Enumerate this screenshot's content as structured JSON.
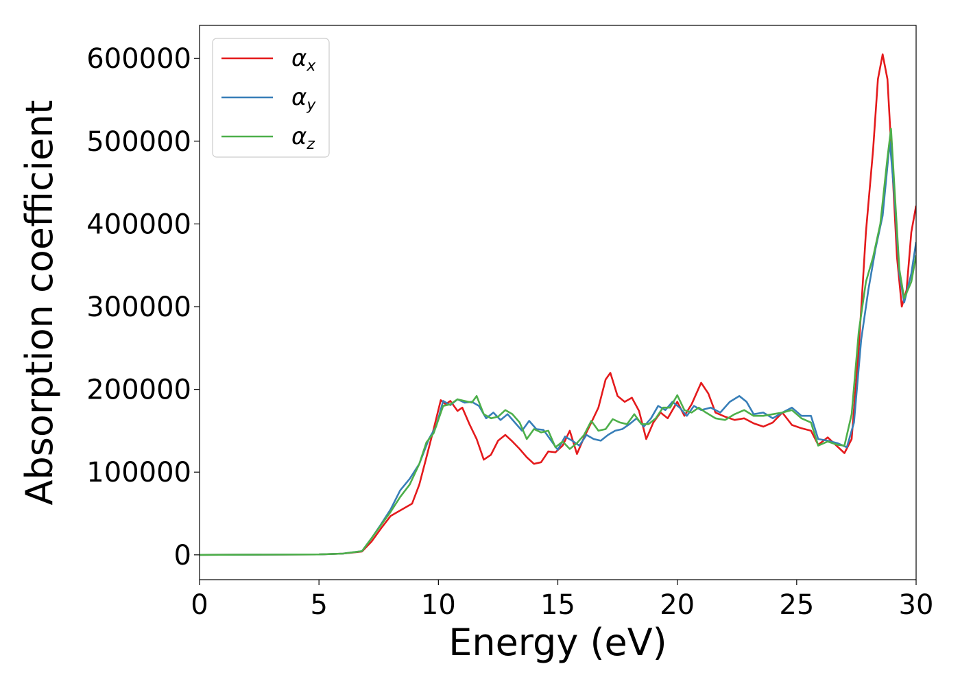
{
  "chart_data": {
    "type": "line",
    "xlabel": "Energy (eV)",
    "ylabel": "Absorption coefficient",
    "xlim": [
      0,
      30
    ],
    "ylim": [
      -30000,
      640000
    ],
    "x_ticks": [
      0,
      5,
      10,
      15,
      20,
      25,
      30
    ],
    "y_ticks": [
      0,
      100000,
      200000,
      300000,
      400000,
      500000,
      600000
    ],
    "grid": false,
    "legend_position": "top-left",
    "series": [
      {
        "name": "α",
        "subscript": "x",
        "color": "#e41a1c",
        "points": [
          [
            0,
            0
          ],
          [
            5,
            500
          ],
          [
            6,
            1500
          ],
          [
            6.8,
            4000
          ],
          [
            7.2,
            16000
          ],
          [
            7.6,
            32000
          ],
          [
            8.0,
            47000
          ],
          [
            8.3,
            52000
          ],
          [
            8.6,
            57000
          ],
          [
            8.9,
            62000
          ],
          [
            9.2,
            85000
          ],
          [
            9.5,
            118000
          ],
          [
            9.8,
            152000
          ],
          [
            10.1,
            187000
          ],
          [
            10.3,
            182000
          ],
          [
            10.5,
            186000
          ],
          [
            10.8,
            174000
          ],
          [
            11.0,
            178000
          ],
          [
            11.3,
            158000
          ],
          [
            11.6,
            140000
          ],
          [
            11.9,
            115000
          ],
          [
            12.2,
            121000
          ],
          [
            12.5,
            138000
          ],
          [
            12.8,
            145000
          ],
          [
            13.1,
            137000
          ],
          [
            13.4,
            128000
          ],
          [
            13.7,
            118000
          ],
          [
            14.0,
            110000
          ],
          [
            14.3,
            112000
          ],
          [
            14.6,
            125000
          ],
          [
            14.9,
            124000
          ],
          [
            15.2,
            132000
          ],
          [
            15.5,
            150000
          ],
          [
            15.8,
            122000
          ],
          [
            16.1,
            142000
          ],
          [
            16.4,
            160000
          ],
          [
            16.7,
            178000
          ],
          [
            17.0,
            212000
          ],
          [
            17.2,
            220000
          ],
          [
            17.5,
            192000
          ],
          [
            17.8,
            185000
          ],
          [
            18.1,
            190000
          ],
          [
            18.4,
            174000
          ],
          [
            18.7,
            140000
          ],
          [
            19.0,
            160000
          ],
          [
            19.3,
            172000
          ],
          [
            19.6,
            165000
          ],
          [
            20.0,
            185000
          ],
          [
            20.3,
            168000
          ],
          [
            20.6,
            182000
          ],
          [
            21.0,
            208000
          ],
          [
            21.3,
            195000
          ],
          [
            21.6,
            172000
          ],
          [
            22.0,
            167000
          ],
          [
            22.4,
            163000
          ],
          [
            22.8,
            165000
          ],
          [
            23.2,
            159000
          ],
          [
            23.6,
            155000
          ],
          [
            24.0,
            160000
          ],
          [
            24.4,
            172000
          ],
          [
            24.8,
            157000
          ],
          [
            25.2,
            153000
          ],
          [
            25.6,
            150000
          ],
          [
            25.9,
            133000
          ],
          [
            26.3,
            142000
          ],
          [
            26.7,
            131000
          ],
          [
            27.0,
            123000
          ],
          [
            27.3,
            140000
          ],
          [
            27.6,
            250000
          ],
          [
            27.9,
            390000
          ],
          [
            28.2,
            490000
          ],
          [
            28.4,
            575000
          ],
          [
            28.6,
            605000
          ],
          [
            28.8,
            575000
          ],
          [
            29.0,
            470000
          ],
          [
            29.2,
            360000
          ],
          [
            29.4,
            300000
          ],
          [
            29.6,
            320000
          ],
          [
            29.8,
            390000
          ],
          [
            30.0,
            422000
          ]
        ]
      },
      {
        "name": "α",
        "subscript": "y",
        "color": "#377eb8",
        "points": [
          [
            0,
            0
          ],
          [
            5,
            500
          ],
          [
            6,
            1500
          ],
          [
            6.8,
            4500
          ],
          [
            7.2,
            20000
          ],
          [
            7.6,
            37000
          ],
          [
            8.0,
            55000
          ],
          [
            8.4,
            78000
          ],
          [
            8.8,
            92000
          ],
          [
            9.2,
            110000
          ],
          [
            9.6,
            140000
          ],
          [
            9.9,
            155000
          ],
          [
            10.2,
            186000
          ],
          [
            10.5,
            181000
          ],
          [
            10.8,
            188000
          ],
          [
            11.1,
            184000
          ],
          [
            11.4,
            185000
          ],
          [
            11.7,
            180000
          ],
          [
            12.0,
            165000
          ],
          [
            12.3,
            172000
          ],
          [
            12.6,
            163000
          ],
          [
            12.9,
            170000
          ],
          [
            13.2,
            160000
          ],
          [
            13.5,
            150000
          ],
          [
            13.8,
            162000
          ],
          [
            14.1,
            152000
          ],
          [
            14.4,
            151000
          ],
          [
            14.7,
            139000
          ],
          [
            15.0,
            127000
          ],
          [
            15.3,
            143000
          ],
          [
            15.6,
            138000
          ],
          [
            15.9,
            132000
          ],
          [
            16.2,
            145000
          ],
          [
            16.5,
            140000
          ],
          [
            16.8,
            138000
          ],
          [
            17.1,
            145000
          ],
          [
            17.4,
            150000
          ],
          [
            17.7,
            152000
          ],
          [
            18.0,
            158000
          ],
          [
            18.3,
            165000
          ],
          [
            18.6,
            155000
          ],
          [
            18.9,
            165000
          ],
          [
            19.2,
            180000
          ],
          [
            19.5,
            175000
          ],
          [
            19.8,
            185000
          ],
          [
            20.1,
            178000
          ],
          [
            20.4,
            168000
          ],
          [
            20.7,
            180000
          ],
          [
            21.0,
            175000
          ],
          [
            21.4,
            178000
          ],
          [
            21.8,
            172000
          ],
          [
            22.2,
            185000
          ],
          [
            22.6,
            192000
          ],
          [
            22.9,
            185000
          ],
          [
            23.2,
            170000
          ],
          [
            23.6,
            172000
          ],
          [
            24.0,
            165000
          ],
          [
            24.4,
            172000
          ],
          [
            24.8,
            178000
          ],
          [
            25.2,
            168000
          ],
          [
            25.6,
            168000
          ],
          [
            25.9,
            140000
          ],
          [
            26.3,
            138000
          ],
          [
            26.7,
            135000
          ],
          [
            27.1,
            130000
          ],
          [
            27.4,
            160000
          ],
          [
            27.7,
            260000
          ],
          [
            28.0,
            320000
          ],
          [
            28.3,
            370000
          ],
          [
            28.6,
            410000
          ],
          [
            28.9,
            500000
          ],
          [
            29.1,
            430000
          ],
          [
            29.3,
            340000
          ],
          [
            29.5,
            305000
          ],
          [
            29.8,
            340000
          ],
          [
            30.0,
            378000
          ]
        ]
      },
      {
        "name": "α",
        "subscript": "z",
        "color": "#4daf4a",
        "points": [
          [
            0,
            0
          ],
          [
            5,
            500
          ],
          [
            6,
            1500
          ],
          [
            6.8,
            4500
          ],
          [
            7.2,
            20000
          ],
          [
            7.6,
            36000
          ],
          [
            8.0,
            52000
          ],
          [
            8.4,
            70000
          ],
          [
            8.8,
            85000
          ],
          [
            9.2,
            110000
          ],
          [
            9.5,
            136000
          ],
          [
            9.8,
            147000
          ],
          [
            10.2,
            180000
          ],
          [
            10.5,
            182000
          ],
          [
            10.8,
            188000
          ],
          [
            11.1,
            186000
          ],
          [
            11.4,
            184000
          ],
          [
            11.6,
            192000
          ],
          [
            11.9,
            170000
          ],
          [
            12.2,
            165000
          ],
          [
            12.5,
            167000
          ],
          [
            12.8,
            175000
          ],
          [
            13.1,
            170000
          ],
          [
            13.4,
            160000
          ],
          [
            13.7,
            140000
          ],
          [
            14.0,
            152000
          ],
          [
            14.3,
            148000
          ],
          [
            14.6,
            150000
          ],
          [
            14.9,
            130000
          ],
          [
            15.2,
            137000
          ],
          [
            15.5,
            128000
          ],
          [
            15.8,
            135000
          ],
          [
            16.1,
            145000
          ],
          [
            16.4,
            162000
          ],
          [
            16.7,
            150000
          ],
          [
            17.0,
            152000
          ],
          [
            17.3,
            164000
          ],
          [
            17.6,
            160000
          ],
          [
            17.9,
            158000
          ],
          [
            18.2,
            170000
          ],
          [
            18.5,
            158000
          ],
          [
            18.8,
            158000
          ],
          [
            19.1,
            165000
          ],
          [
            19.4,
            178000
          ],
          [
            19.7,
            178000
          ],
          [
            20.0,
            193000
          ],
          [
            20.3,
            175000
          ],
          [
            20.6,
            172000
          ],
          [
            20.9,
            178000
          ],
          [
            21.2,
            172000
          ],
          [
            21.6,
            165000
          ],
          [
            22.0,
            163000
          ],
          [
            22.4,
            170000
          ],
          [
            22.8,
            175000
          ],
          [
            23.2,
            168000
          ],
          [
            23.6,
            168000
          ],
          [
            24.0,
            170000
          ],
          [
            24.4,
            172000
          ],
          [
            24.8,
            175000
          ],
          [
            25.2,
            165000
          ],
          [
            25.6,
            160000
          ],
          [
            25.9,
            132000
          ],
          [
            26.3,
            137000
          ],
          [
            26.7,
            133000
          ],
          [
            27.0,
            132000
          ],
          [
            27.3,
            170000
          ],
          [
            27.6,
            270000
          ],
          [
            27.9,
            330000
          ],
          [
            28.2,
            360000
          ],
          [
            28.5,
            400000
          ],
          [
            28.8,
            480000
          ],
          [
            28.95,
            515000
          ],
          [
            29.1,
            440000
          ],
          [
            29.3,
            345000
          ],
          [
            29.5,
            310000
          ],
          [
            29.8,
            330000
          ],
          [
            30.0,
            362000
          ]
        ]
      }
    ]
  }
}
